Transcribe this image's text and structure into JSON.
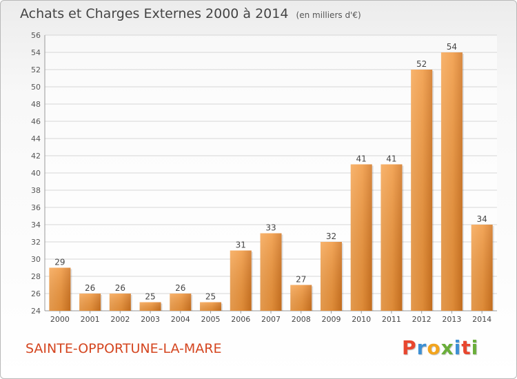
{
  "chart_data": {
    "type": "bar",
    "title": "Achats et Charges Externes 2000 à 2014",
    "subtitle": "(en milliers d'€)",
    "categories": [
      "2000",
      "2001",
      "2002",
      "2003",
      "2004",
      "2005",
      "2006",
      "2007",
      "2008",
      "2009",
      "2010",
      "2011",
      "2012",
      "2013",
      "2014"
    ],
    "values": [
      29,
      26,
      26,
      25,
      26,
      25,
      31,
      33,
      27,
      32,
      41,
      41,
      52,
      54,
      34
    ],
    "ylim": [
      24,
      56
    ],
    "yticks": [
      24,
      26,
      28,
      30,
      32,
      34,
      36,
      38,
      40,
      42,
      44,
      46,
      48,
      50,
      52,
      54,
      56
    ],
    "grid": true,
    "bar_color": "#f0963c",
    "bar_color_dark": "#cf6f1a"
  },
  "location_name": "SAINTE-OPPORTUNE-LA-MARE",
  "brand": {
    "letters": [
      "P",
      "r",
      "o",
      "x",
      "i",
      "t",
      "i"
    ],
    "colors": [
      "#e8462e",
      "#3c8fd4",
      "#f2a41e",
      "#6aae3a",
      "#3c8fd4",
      "#e8462e",
      "#6aae3a"
    ]
  }
}
